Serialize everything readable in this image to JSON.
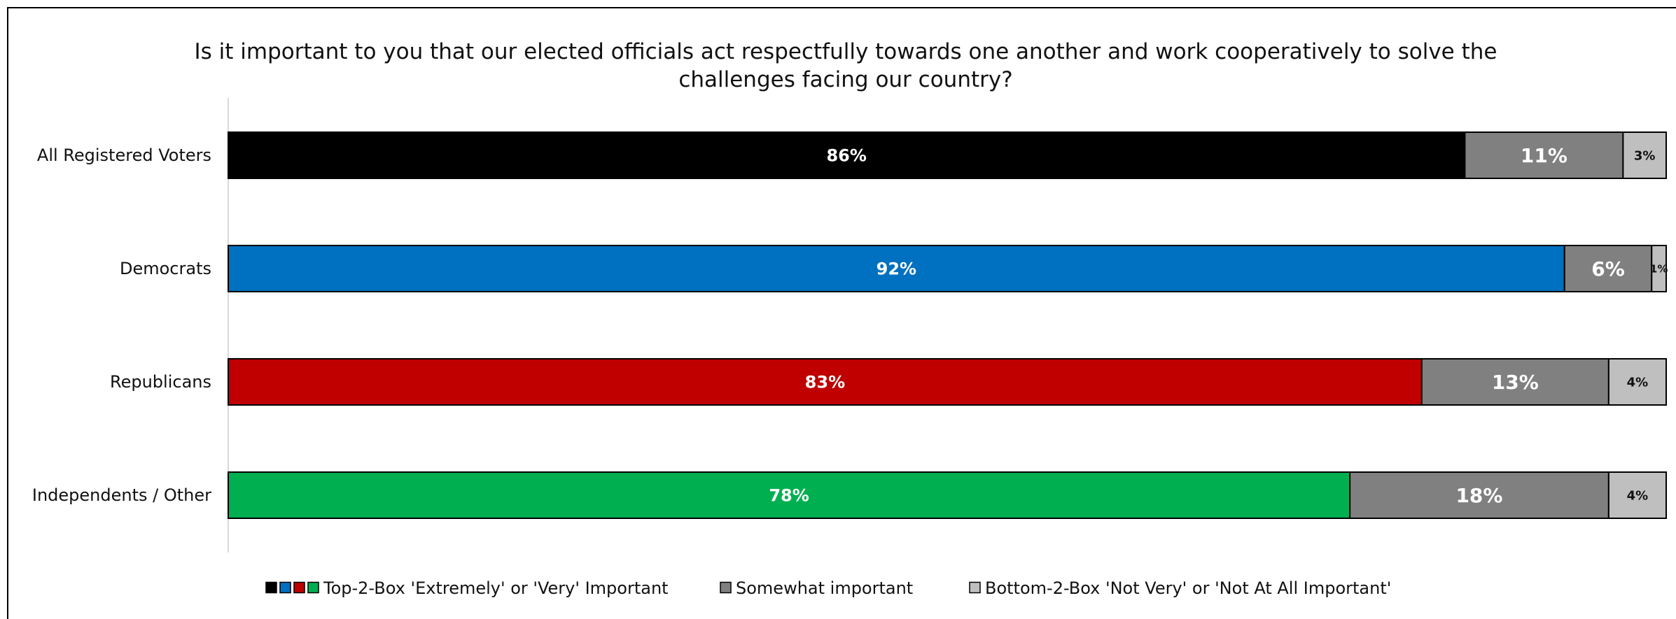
{
  "chart_data": {
    "type": "bar",
    "orientation": "horizontal",
    "stacked": true,
    "title": "Is it important to you that our elected officials act respectfully towards one another and work cooperatively to solve the challenges facing our country?",
    "title_lines": [
      "Is it important to you that our elected officials act respectfully towards one another and work cooperatively to solve the",
      "challenges facing our country?"
    ],
    "categories": [
      "All Registered Voters",
      "Democrats",
      "Republicans",
      "Independents / Other"
    ],
    "xlim": [
      0,
      100
    ],
    "grid": false,
    "legend_placement": "bottom",
    "series": [
      {
        "name": "Top-2-Box 'Extremely' or 'Very' Important",
        "values": [
          86,
          92,
          83,
          78
        ],
        "labels": [
          "86%",
          "92%",
          "83%",
          "78%"
        ],
        "colors": [
          "#000000",
          "#0070C0",
          "#C00000",
          "#00B050"
        ],
        "label_color": "#ffffff"
      },
      {
        "name": "Somewhat important",
        "values": [
          11,
          6,
          13,
          18
        ],
        "labels": [
          "11%",
          "6%",
          "13%",
          "18%"
        ],
        "colors": [
          "#808080",
          "#808080",
          "#808080",
          "#808080"
        ],
        "label_color": "#ffffff"
      },
      {
        "name": "Bottom-2-Box 'Not Very' or 'Not At All Important'",
        "values": [
          3,
          1,
          4,
          4
        ],
        "labels": [
          "3%",
          "1%",
          "4%",
          "4%"
        ],
        "colors": [
          "#BFBFBF",
          "#BFBFBF",
          "#BFBFBF",
          "#BFBFBF"
        ],
        "label_color": "#111111"
      }
    ],
    "legend_swatch_colors": [
      [
        "#000000",
        "#0070C0",
        "#C00000",
        "#00B050"
      ],
      [
        "#808080"
      ],
      [
        "#BFBFBF"
      ]
    ]
  }
}
